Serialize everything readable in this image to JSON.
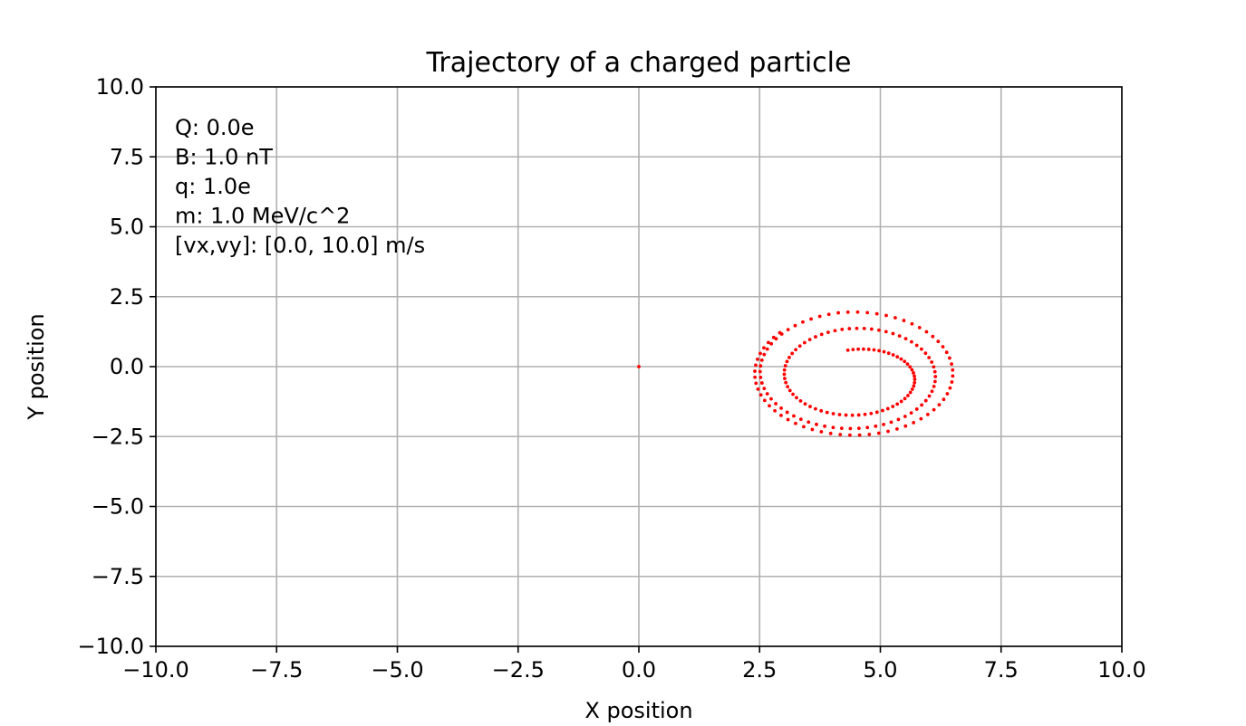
{
  "chart_data": {
    "type": "scatter",
    "title": "Trajectory of a charged particle",
    "xlabel": "X position",
    "ylabel": "Y position",
    "xlim": [
      -10.0,
      10.0
    ],
    "ylim": [
      -10.0,
      10.0
    ],
    "xticks": [
      -10.0,
      -7.5,
      -5.0,
      -2.5,
      0.0,
      2.5,
      5.0,
      7.5,
      10.0
    ],
    "yticks": [
      -10.0,
      -7.5,
      -5.0,
      -2.5,
      0.0,
      2.5,
      5.0,
      7.5,
      10.0
    ],
    "xtick_labels": [
      "−10.0",
      "−7.5",
      "−5.0",
      "−2.5",
      "0.0",
      "2.5",
      "5.0",
      "7.5",
      "10.0"
    ],
    "ytick_labels": [
      "−10.0",
      "−7.5",
      "−5.0",
      "−2.5",
      "0.0",
      "2.5",
      "5.0",
      "7.5",
      "10.0"
    ],
    "grid": true,
    "marker_color": "#ff0000",
    "annotations": [
      "Q: 0.0e",
      "B: 1.0  nT",
      "q: 1.0e",
      "m: 1.0 MeV/c^2",
      "[vx,vy]: [0.0, 10.0] m/s"
    ],
    "series": [
      {
        "marker": "point",
        "points": [
          [
            0.0,
            0.0
          ]
        ]
      },
      {
        "marker": "point",
        "description_trajectory": {
          "spiral": [
            {
              "cx": 4.5,
              "cy": -0.45,
              "rx": 1.1,
              "ry": 1.05
            },
            {
              "cx": 4.45,
              "cy": -0.3,
              "rx": 1.55,
              "ry": 1.65
            },
            {
              "cx": 4.45,
              "cy": -0.25,
              "rx": 2.05,
              "ry": 2.2
            }
          ],
          "start": [
            4.6,
            0.6
          ],
          "end": [
            6.15,
            1.45
          ]
        }
      }
    ]
  }
}
